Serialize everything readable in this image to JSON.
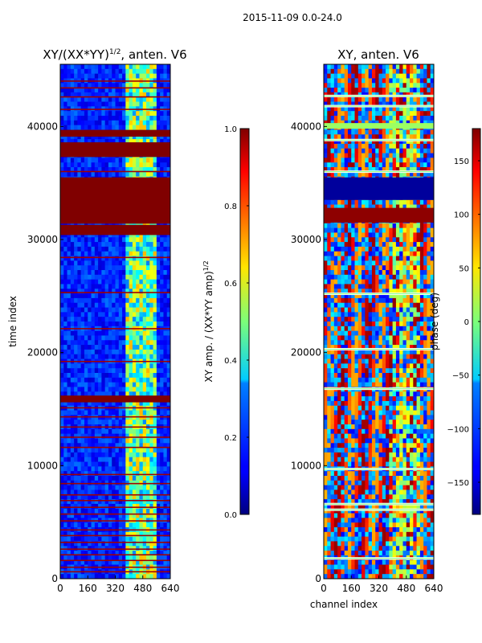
{
  "figure": {
    "suptitle": "2015-11-09 0.0-24.0"
  },
  "chart_data": [
    {
      "type": "heatmap",
      "title": "XY/(XX*YY)^{1/2}, anten. V6",
      "title_main": "XY/(XX*YY)",
      "title_exp": "1/2",
      "title_tail": ", anten. V6",
      "xlabel": "",
      "ylabel": "time index",
      "xlim": [
        0,
        640
      ],
      "ylim": [
        0,
        45500
      ],
      "xticks": [
        0,
        160,
        320,
        480,
        640
      ],
      "yticks": [
        0,
        10000,
        20000,
        30000,
        40000
      ],
      "colorbar": {
        "label": "XY amp. / (XX*YY amp)^{1/2}",
        "label_main": "XY amp. / (XX*YY amp)",
        "label_exp": "1/2",
        "range": [
          0.0,
          1.0
        ],
        "ticks": [
          "0.0",
          "0.2",
          "0.4",
          "0.6",
          "0.8",
          "1.0"
        ],
        "tick_values": [
          0.0,
          0.2,
          0.4,
          0.6,
          0.8,
          1.0
        ]
      },
      "bands": [
        {
          "from": 39100,
          "to": 39700,
          "value": 1.0
        },
        {
          "from": 37300,
          "to": 38600,
          "value": 1.0
        },
        {
          "from": 31400,
          "to": 35500,
          "value": 1.0
        },
        {
          "from": 30400,
          "to": 31300,
          "value": 1.0
        },
        {
          "from": 15600,
          "to": 16200,
          "value": 1.0
        }
      ],
      "stripes": [
        4300,
        3800,
        3200,
        2600,
        2100,
        1600,
        1000,
        600,
        5100,
        5700,
        6300,
        6900,
        7400,
        8400,
        9200,
        11600,
        12500,
        13400,
        14300,
        15100,
        19200,
        22100,
        25300,
        28400,
        36000,
        41500,
        42600,
        43400,
        44000
      ]
    },
    {
      "type": "heatmap",
      "title": "XY, anten. V6",
      "xlabel": "channel index",
      "ylabel": "",
      "xlim": [
        0,
        640
      ],
      "ylim": [
        0,
        45500
      ],
      "xticks": [
        0,
        160,
        320,
        480,
        640
      ],
      "yticks": [
        0,
        10000,
        20000,
        30000,
        40000
      ],
      "colorbar": {
        "label": "phase (deg)",
        "range": [
          -180,
          180
        ],
        "ticks": [
          "−150",
          "−100",
          "−50",
          "0",
          "50",
          "100",
          "150"
        ],
        "tick_values": [
          -150,
          -100,
          -50,
          0,
          50,
          100,
          150
        ]
      },
      "bands": [
        {
          "from": 33500,
          "to": 35500,
          "value": -170
        },
        {
          "from": 31500,
          "to": 32800,
          "value": 175
        },
        {
          "from": 39800,
          "to": 40300,
          "value": 10
        }
      ],
      "stripes": [
        42700,
        41800,
        38800,
        36000,
        25200,
        20300,
        16800,
        9700,
        6600,
        6100,
        1800
      ]
    }
  ]
}
